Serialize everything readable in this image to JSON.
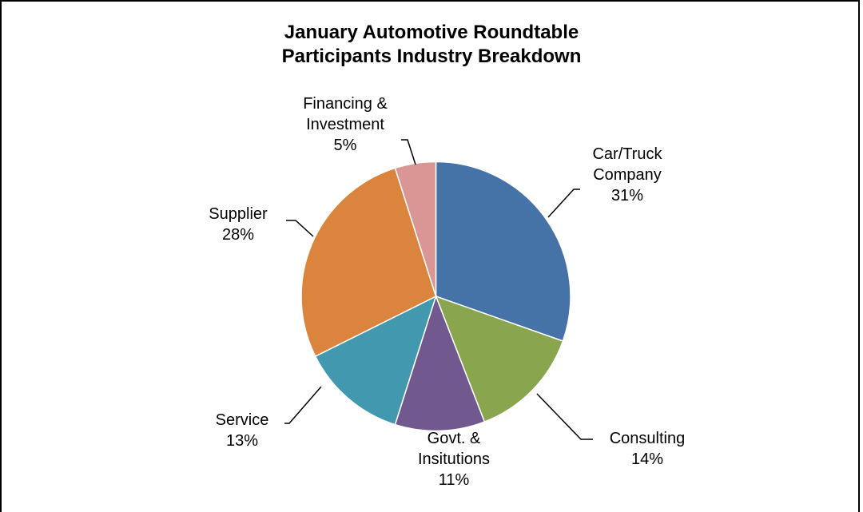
{
  "chart_data": {
    "type": "pie",
    "title": "January Automotive Roundtable",
    "subtitle": "Participants Industry Breakdown",
    "categories": [
      "Car/Truck Company",
      "Consulting",
      "Govt. & Insitutions",
      "Service",
      "Supplier",
      "Financing & Investment"
    ],
    "values": [
      31,
      14,
      11,
      13,
      28,
      5
    ],
    "value_labels": [
      "31%",
      "14%",
      "11%",
      "13%",
      "28%",
      "5%"
    ],
    "colors": [
      "#4572a7",
      "#89a54e",
      "#71588f",
      "#4198af",
      "#db843d",
      "#d99694"
    ]
  }
}
